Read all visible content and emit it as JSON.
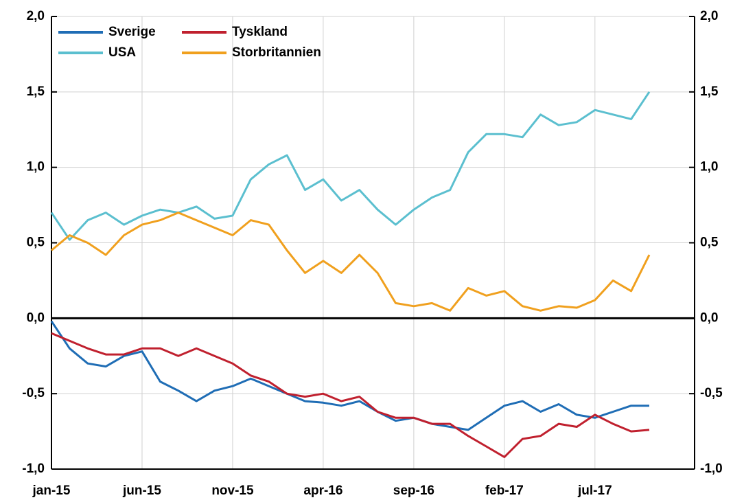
{
  "chart_data": {
    "type": "line",
    "categories": [
      "jan-15",
      null,
      null,
      null,
      null,
      "jun-15",
      null,
      null,
      null,
      null,
      "nov-15",
      null,
      null,
      null,
      null,
      "apr-16",
      null,
      null,
      null,
      null,
      "sep-16",
      null,
      null,
      null,
      null,
      "feb-17",
      null,
      null,
      null,
      null,
      "jul-17",
      null,
      null,
      null
    ],
    "series": [
      {
        "name": "Sverige",
        "color": "#1f6db5",
        "values": [
          -0.02,
          -0.2,
          -0.3,
          -0.32,
          -0.25,
          -0.22,
          -0.42,
          -0.48,
          -0.55,
          -0.48,
          -0.45,
          -0.4,
          -0.45,
          -0.5,
          -0.55,
          -0.56,
          -0.58,
          -0.55,
          -0.62,
          -0.68,
          -0.66,
          -0.7,
          -0.72,
          -0.74,
          -0.66,
          -0.58,
          -0.55,
          -0.62,
          -0.57,
          -0.64,
          -0.66,
          -0.62,
          -0.58,
          -0.58
        ]
      },
      {
        "name": "Tyskland",
        "color": "#c0202e",
        "values": [
          -0.1,
          -0.15,
          -0.2,
          -0.24,
          -0.24,
          -0.2,
          -0.2,
          -0.25,
          -0.2,
          -0.25,
          -0.3,
          -0.38,
          -0.42,
          -0.5,
          -0.52,
          -0.5,
          -0.55,
          -0.52,
          -0.62,
          -0.66,
          -0.66,
          -0.7,
          -0.7,
          -0.78,
          -0.85,
          -0.92,
          -0.8,
          -0.78,
          -0.7,
          -0.72,
          -0.64,
          -0.7,
          -0.75,
          -0.74
        ]
      },
      {
        "name": "USA",
        "color": "#5bbfcf",
        "values": [
          0.7,
          0.52,
          0.65,
          0.7,
          0.62,
          0.68,
          0.72,
          0.7,
          0.74,
          0.66,
          0.68,
          0.92,
          1.02,
          1.08,
          0.85,
          0.92,
          0.78,
          0.85,
          0.72,
          0.62,
          0.72,
          0.8,
          0.85,
          1.1,
          1.22,
          1.22,
          1.2,
          1.35,
          1.28,
          1.3,
          1.38,
          1.35,
          1.32,
          1.5
        ]
      },
      {
        "name": "Storbritannien",
        "color": "#f0a01e",
        "values": [
          0.45,
          0.55,
          0.5,
          0.42,
          0.55,
          0.62,
          0.65,
          0.7,
          0.65,
          0.6,
          0.55,
          0.65,
          0.62,
          0.45,
          0.3,
          0.38,
          0.3,
          0.42,
          0.3,
          0.1,
          0.08,
          0.1,
          0.05,
          0.2,
          0.15,
          0.18,
          0.08,
          0.05,
          0.08,
          0.07,
          0.12,
          0.25,
          0.18,
          0.42
        ]
      }
    ],
    "ylim": [
      -1,
      2
    ],
    "yticks": [
      {
        "value": -1,
        "label": "-1,0"
      },
      {
        "value": -0.5,
        "label": "-0,5"
      },
      {
        "value": 0,
        "label": "0,0"
      },
      {
        "value": 0.5,
        "label": "0,5"
      },
      {
        "value": 1,
        "label": "1,0"
      },
      {
        "value": 1.5,
        "label": "1,5"
      },
      {
        "value": 2,
        "label": "2,0"
      }
    ],
    "y2lim": [
      -1,
      2
    ],
    "y2ticks": [
      {
        "value": -1,
        "label": "-1,0"
      },
      {
        "value": -0.5,
        "label": "-0,5"
      },
      {
        "value": 0,
        "label": "0,0"
      },
      {
        "value": 0.5,
        "label": "0,5"
      },
      {
        "value": 1,
        "label": "1,0"
      },
      {
        "value": 1.5,
        "label": "1,5"
      },
      {
        "value": 2,
        "label": "2,0"
      }
    ],
    "grid": true,
    "legend": "top-left"
  }
}
